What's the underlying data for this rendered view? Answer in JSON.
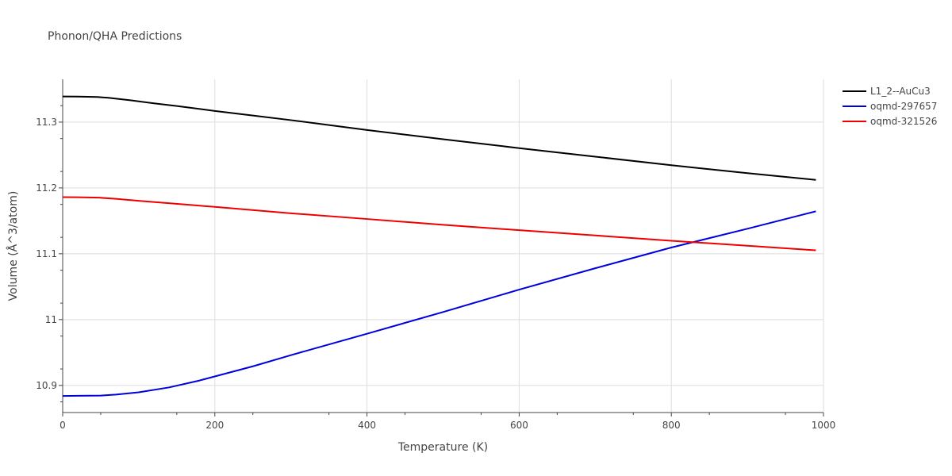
{
  "chart_data": {
    "type": "line",
    "title": "Phonon/QHA Predictions",
    "xlabel": "Temperature (K)",
    "ylabel": "Volume (Å^3/atom)",
    "xlim": [
      0,
      1000
    ],
    "ylim": [
      10.86,
      11.365
    ],
    "x_ticks": [
      0,
      200,
      400,
      600,
      800,
      1000
    ],
    "x_tick_labels": [
      "0",
      "200",
      "400",
      "600",
      "800",
      "1000"
    ],
    "y_ticks": [
      10.9,
      11.0,
      11.1,
      11.2,
      11.3
    ],
    "y_tick_labels": [
      "10.9",
      "11",
      "11.1",
      "11.2",
      "11.3"
    ],
    "grid": true,
    "legend_position": "top-right",
    "series": [
      {
        "name": "L1_2--AuCu3",
        "color": "#000000",
        "x": [
          0,
          20,
          45,
          60,
          90,
          120,
          150,
          200,
          250,
          300,
          400,
          500,
          600,
          700,
          800,
          900,
          990
        ],
        "y": [
          11.339,
          11.3388,
          11.3382,
          11.337,
          11.333,
          11.3285,
          11.3245,
          11.317,
          11.31,
          11.303,
          11.288,
          11.274,
          11.2605,
          11.2475,
          11.2345,
          11.2225,
          11.2122
        ]
      },
      {
        "name": "oqmd-297657",
        "color": "#0000dd",
        "x": [
          0,
          20,
          50,
          70,
          100,
          140,
          180,
          250,
          300,
          400,
          500,
          600,
          700,
          800,
          900,
          990
        ],
        "y": [
          10.884,
          10.8842,
          10.8845,
          10.886,
          10.8895,
          10.897,
          10.9075,
          10.929,
          10.946,
          10.9785,
          11.0115,
          11.0455,
          11.078,
          11.1095,
          11.138,
          11.1645
        ]
      },
      {
        "name": "oqmd-321526",
        "color": "#ee0000",
        "x": [
          0,
          20,
          48,
          70,
          100,
          200,
          300,
          400,
          500,
          600,
          700,
          800,
          900,
          990
        ],
        "y": [
          11.186,
          11.1858,
          11.1852,
          11.1835,
          11.1805,
          11.1712,
          11.1615,
          11.1528,
          11.144,
          11.1358,
          11.1278,
          11.1198,
          11.1122,
          11.1052
        ]
      }
    ]
  }
}
